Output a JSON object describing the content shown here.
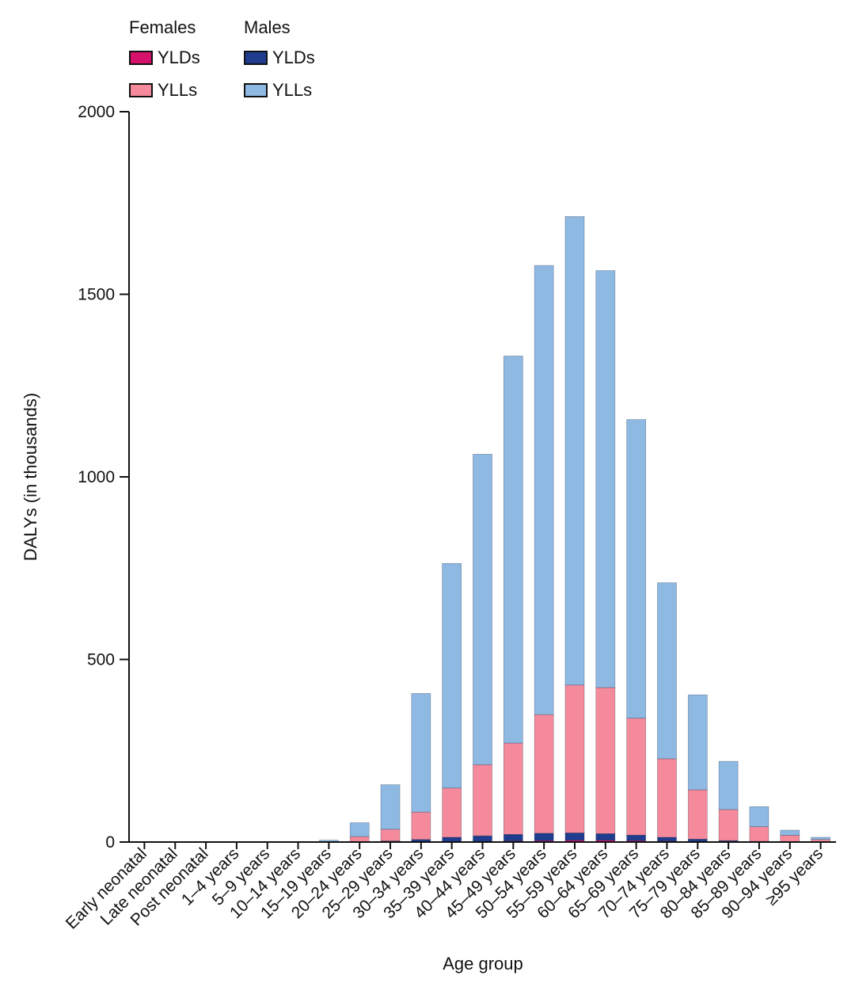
{
  "chart_data": {
    "type": "bar",
    "stacked": true,
    "title": "",
    "xlabel": "Age group",
    "ylabel": "DALYs (in thousands)",
    "ylim": [
      0,
      2000
    ],
    "yticks": [
      "0",
      "500",
      "1000",
      "1500",
      "2000"
    ],
    "ytick_values": [
      0,
      500,
      1000,
      1500,
      2000
    ],
    "grid": false,
    "legend_placement": "top-left",
    "legend": {
      "groups": [
        {
          "title": "Females",
          "items": [
            "YLDs",
            "YLLs"
          ]
        },
        {
          "title": "Males",
          "items": [
            "YLDs",
            "YLLs"
          ]
        }
      ]
    },
    "categories": [
      "Early neonatal",
      "Late neonatal",
      "Post neonatal",
      "1–4 years",
      "5–9 years",
      "10–14 years",
      "15–19 years",
      "20–24 years",
      "25–29 years",
      "30–34 years",
      "35–39 years",
      "40–44 years",
      "45–49 years",
      "50–54 years",
      "55–59 years",
      "60–64 years",
      "65–69 years",
      "70–74 years",
      "75–79 years",
      "80–84 years",
      "85–89 years",
      "90–94 years",
      "≥95 years"
    ],
    "series": [
      {
        "name": "Females YLDs",
        "color": "#d6116b",
        "values": [
          0,
          0,
          0,
          0,
          0,
          0,
          0,
          0,
          0,
          0,
          1,
          2,
          3,
          4,
          5,
          5,
          4,
          3,
          2,
          1,
          1,
          0,
          0
        ]
      },
      {
        "name": "Males YLDs",
        "color": "#1f3c8f",
        "values": [
          0,
          0,
          0,
          0,
          0,
          0,
          0.5,
          1,
          3,
          7,
          12,
          15,
          18,
          20,
          20,
          18,
          15,
          10,
          6,
          3,
          1,
          0.5,
          0
        ]
      },
      {
        "name": "Females YLLs",
        "color": "#f48a9b",
        "values": [
          0,
          0,
          0,
          0,
          0,
          0,
          0.5,
          14,
          32,
          75,
          135,
          195,
          250,
          325,
          405,
          400,
          320,
          215,
          135,
          85,
          40,
          18,
          7
        ]
      },
      {
        "name": "Males YLLs",
        "color": "#8eb9e3",
        "values": [
          0,
          0,
          0,
          0,
          0,
          0,
          4,
          38,
          122,
          325,
          615,
          850,
          1060,
          1230,
          1283,
          1142,
          818,
          482,
          260,
          132,
          55,
          14,
          6
        ]
      }
    ]
  },
  "colors": {
    "female_ylds": "#d6116b",
    "female_ylls": "#f48a9b",
    "male_ylds": "#1f3c8f",
    "male_ylls": "#8eb9e3",
    "axis": "#111111"
  }
}
